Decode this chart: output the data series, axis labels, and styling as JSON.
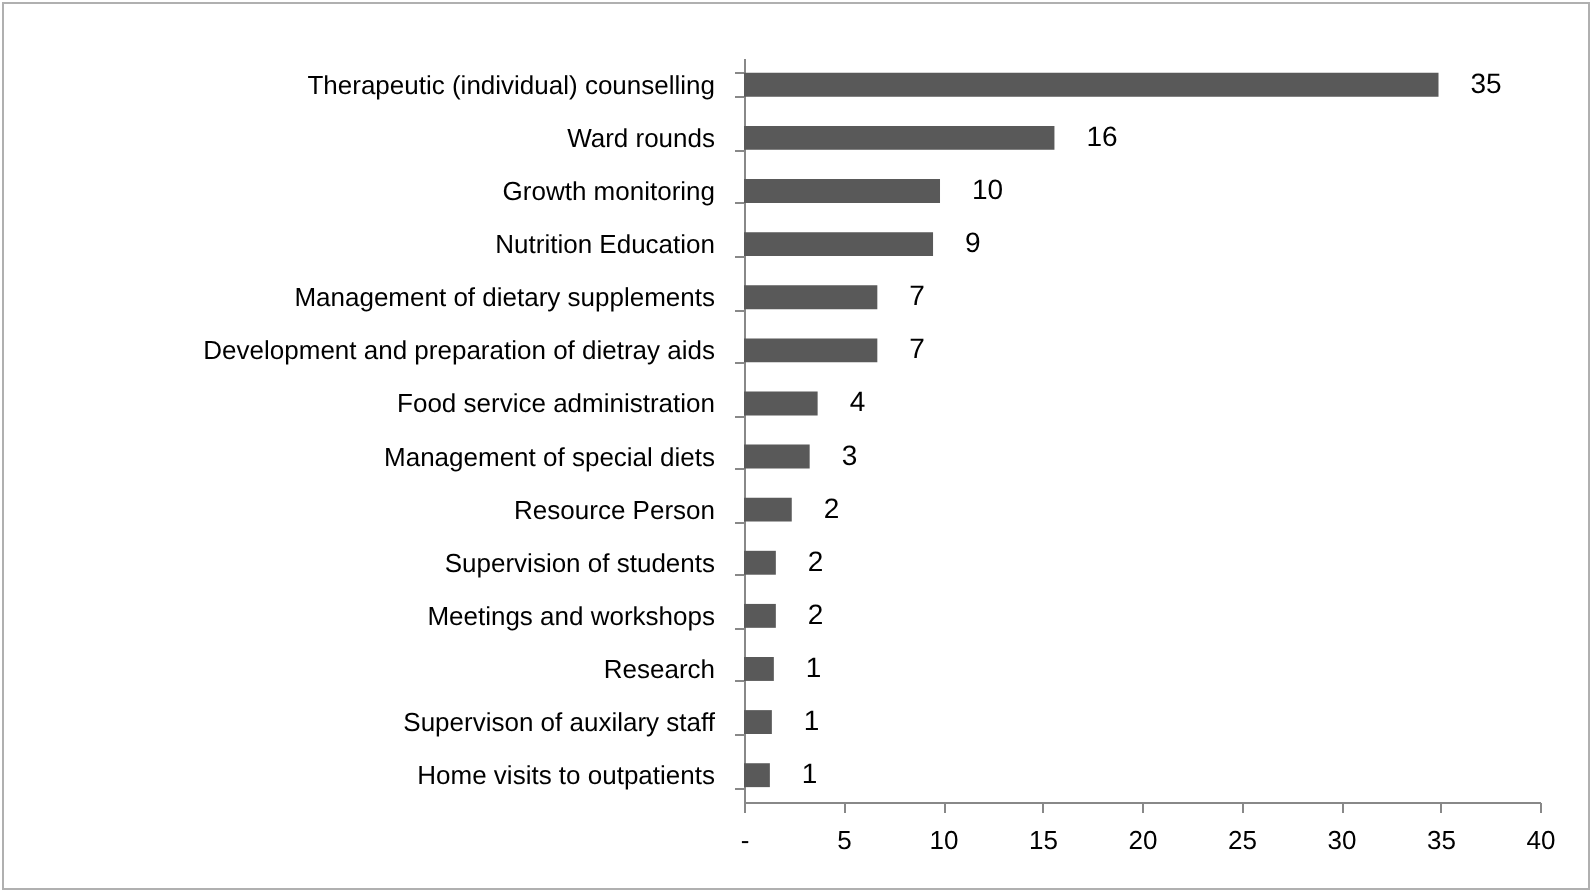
{
  "chart_data": {
    "type": "bar",
    "orientation": "horizontal",
    "categories": [
      "Therapeutic (individual) counselling",
      "Ward rounds",
      "Growth monitoring",
      "Nutrition Education",
      "Management of dietary supplements",
      "Development and preparation of dietray aids",
      "Food service administration",
      "Management of special diets",
      "Resource Person",
      "Supervision of students",
      "Meetings and workshops",
      "Research",
      "Supervison of auxilary staff",
      "Home visits to outpatients"
    ],
    "values": [
      34.9,
      15.6,
      9.85,
      9.5,
      6.7,
      6.7,
      3.7,
      3.3,
      2.4,
      1.6,
      1.6,
      1.5,
      1.4,
      1.3
    ],
    "value_labels": [
      "35",
      "16",
      "10",
      "9",
      "7",
      "7",
      "4",
      "3",
      "2",
      "2",
      "2",
      "1",
      "1",
      "1"
    ],
    "color": "#595959",
    "xlim": [
      0,
      40
    ],
    "xticks": [
      {
        "value": 0,
        "label": "-"
      },
      5,
      10,
      15,
      20,
      25,
      30,
      35,
      40
    ],
    "grid": false
  }
}
